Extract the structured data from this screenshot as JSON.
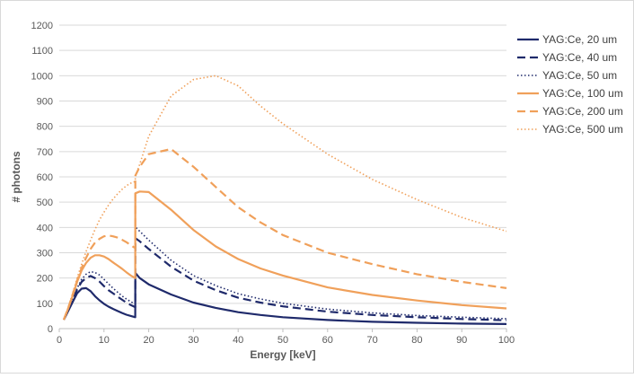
{
  "chart_data": {
    "type": "line",
    "title": "",
    "xlabel": "Energy [keV]",
    "ylabel": "# photons",
    "xlim": [
      0,
      100
    ],
    "ylim": [
      0,
      1200
    ],
    "xticks": [
      0,
      10,
      20,
      30,
      40,
      50,
      60,
      70,
      80,
      90,
      100
    ],
    "yticks": [
      0,
      100,
      200,
      300,
      400,
      500,
      600,
      700,
      800,
      900,
      1000,
      1100,
      1200
    ],
    "grid": "horizontal",
    "legend_position": "right",
    "x": [
      1,
      2,
      3,
      4,
      5,
      6,
      7,
      8,
      9,
      10,
      11,
      12,
      13,
      14,
      15,
      16,
      16.99,
      17.01,
      18,
      20,
      25,
      30,
      35,
      40,
      45,
      50,
      60,
      70,
      80,
      90,
      100
    ],
    "series": [
      {
        "name": "YAG:Ce, 20 um",
        "color": "#1f2a6b",
        "dash": "solid",
        "values": [
          35,
          70,
          105,
          140,
          158,
          160,
          148,
          128,
          112,
          98,
          87,
          78,
          70,
          62,
          55,
          50,
          45,
          220,
          200,
          175,
          135,
          103,
          82,
          65,
          54,
          45,
          34,
          27,
          23,
          20,
          18
        ]
      },
      {
        "name": "YAG:Ce, 40 um",
        "color": "#1f2a6b",
        "dash": "dashed",
        "values": [
          35,
          72,
          112,
          155,
          185,
          200,
          208,
          200,
          186,
          168,
          152,
          140,
          127,
          115,
          103,
          93,
          85,
          358,
          345,
          315,
          245,
          190,
          152,
          122,
          103,
          88,
          67,
          54,
          45,
          38,
          33
        ]
      },
      {
        "name": "YAG:Ce, 50 um",
        "color": "#1f2a6b",
        "dash": "dotted",
        "values": [
          35,
          73,
          115,
          160,
          195,
          215,
          225,
          222,
          212,
          195,
          177,
          160,
          145,
          130,
          117,
          106,
          97,
          402,
          385,
          350,
          270,
          210,
          170,
          138,
          117,
          100,
          77,
          62,
          52,
          45,
          39
        ]
      },
      {
        "name": "YAG:Ce, 100 um",
        "color": "#f0a05a",
        "dash": "solid",
        "values": [
          35,
          80,
          130,
          185,
          230,
          260,
          280,
          290,
          290,
          285,
          275,
          262,
          250,
          237,
          223,
          210,
          200,
          535,
          542,
          540,
          470,
          390,
          325,
          275,
          238,
          210,
          163,
          133,
          111,
          93,
          80
        ]
      },
      {
        "name": "YAG:Ce, 200 um",
        "color": "#f0a05a",
        "dash": "dashed",
        "values": [
          35,
          82,
          135,
          190,
          240,
          280,
          315,
          340,
          355,
          365,
          368,
          365,
          360,
          352,
          342,
          330,
          318,
          605,
          640,
          690,
          710,
          640,
          560,
          480,
          420,
          370,
          300,
          255,
          215,
          185,
          160
        ]
      },
      {
        "name": "YAG:Ce, 500 um",
        "color": "#f0a05a",
        "dash": "dotted",
        "values": [
          35,
          85,
          140,
          200,
          255,
          305,
          350,
          392,
          430,
          460,
          488,
          512,
          532,
          550,
          565,
          575,
          582,
          600,
          650,
          760,
          920,
          985,
          1000,
          960,
          880,
          810,
          690,
          590,
          510,
          440,
          385
        ]
      }
    ]
  }
}
